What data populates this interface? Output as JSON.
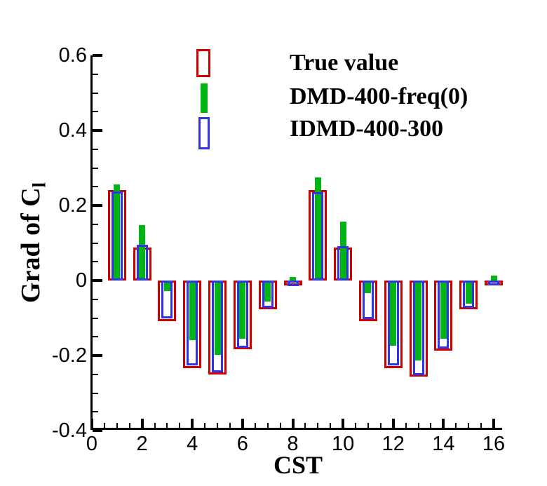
{
  "figure": {
    "background": "#ffffff"
  },
  "legend": {
    "items": [
      {
        "label": "True value",
        "swatch": "open-rect",
        "color": "#ce0000"
      },
      {
        "label": "DMD-400-freq(0)",
        "swatch": "filled-bar",
        "color": "#00b414"
      },
      {
        "label": "IDMD-400-300",
        "swatch": "open-rect",
        "color": "#3232e6"
      }
    ]
  },
  "axes": {
    "x_title": "CST",
    "y_title_main": "Grad of C",
    "y_title_sub": "l",
    "x_tick_labels": [
      "0",
      "2",
      "4",
      "6",
      "8",
      "10",
      "12",
      "14",
      "16"
    ],
    "y_tick_labels": [
      "0.6",
      "0.4",
      "0.2",
      "0",
      "-0.2",
      "-0.4"
    ]
  },
  "chart_data": {
    "type": "bar",
    "title": "",
    "xlabel": "CST",
    "ylabel": "Grad of C_l",
    "xlim": [
      0,
      16
    ],
    "ylim": [
      -0.4,
      0.6
    ],
    "x_major_tick_step": 2,
    "x_minor_tick_step": 0.5,
    "y_major_tick_step": 0.2,
    "y_minor_tick_step": 0.05,
    "grid": false,
    "legend_position": "top-inside",
    "categories": [
      1,
      2,
      3,
      4,
      5,
      6,
      7,
      8,
      9,
      10,
      11,
      12,
      13,
      14,
      15,
      16
    ],
    "series": [
      {
        "name": "True value",
        "style": "wide-open-rect",
        "color": "#ce0000",
        "values": [
          0.242,
          0.088,
          -0.109,
          -0.234,
          -0.25,
          -0.184,
          -0.076,
          -0.009,
          0.241,
          0.087,
          -0.109,
          -0.234,
          -0.257,
          -0.187,
          -0.076,
          -0.008
        ]
      },
      {
        "name": "DMD-400-freq(0)",
        "style": "narrow-filled-bar",
        "color": "#00b414",
        "values": [
          0.257,
          0.148,
          -0.028,
          -0.158,
          -0.199,
          -0.155,
          -0.057,
          0.009,
          0.274,
          0.157,
          -0.034,
          -0.174,
          -0.213,
          -0.156,
          -0.061,
          0.013
        ]
      },
      {
        "name": "IDMD-400-300",
        "style": "medium-open-rect",
        "color": "#3232e6",
        "values": [
          0.238,
          0.095,
          -0.101,
          -0.227,
          -0.244,
          -0.179,
          -0.073,
          -0.015,
          0.235,
          0.092,
          -0.103,
          -0.227,
          -0.252,
          -0.182,
          -0.073,
          -0.012
        ]
      }
    ]
  }
}
